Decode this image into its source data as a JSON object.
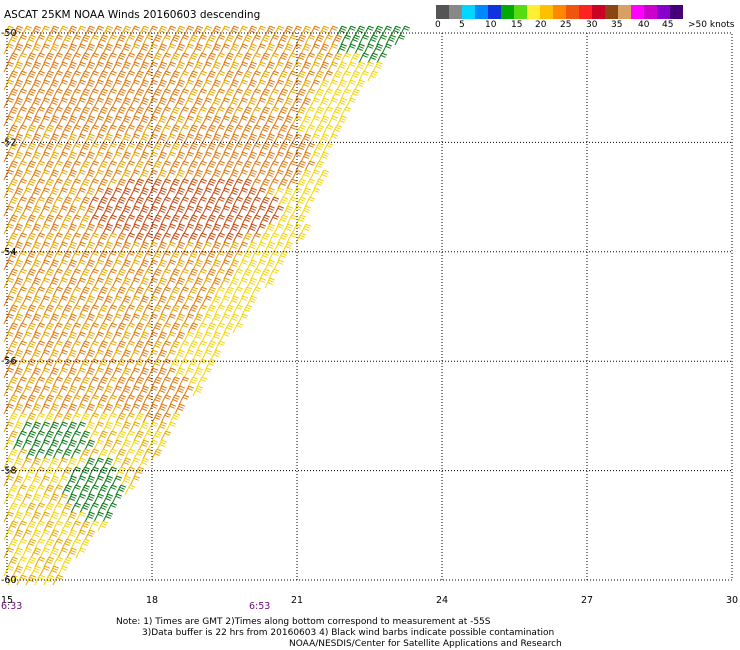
{
  "title": "ASCAT 25KM NOAA Winds 20160603 descending",
  "legend": {
    "colors": [
      "#555555",
      "#888888",
      "#00d7ff",
      "#0088ff",
      "#1133dd",
      "#00aa00",
      "#55dd11",
      "#ffee33",
      "#ffc000",
      "#ff8800",
      "#ee5511",
      "#ff2222",
      "#cc0022",
      "#8b4513",
      "#d9a066",
      "#ff00ff",
      "#cc00cc",
      "#8800cc",
      "#440077"
    ],
    "ticks": [
      "0",
      "5",
      "10",
      "15",
      "20",
      "25",
      "30",
      "35",
      "40",
      "45",
      ">50 knots"
    ],
    "barb_colors": {
      "yellow": "#f5d60a",
      "gold": "#e8a800",
      "orange": "#e07a10",
      "rust": "#c84a12",
      "green": "#0e7a18"
    }
  },
  "map": {
    "lat_labels": [
      "-50",
      "-52",
      "-54",
      "-56",
      "-58",
      "-60"
    ],
    "lon_labels": [
      "15",
      "18",
      "21",
      "24",
      "27",
      "30"
    ],
    "time_labels": [
      "6:33",
      "6:53"
    ]
  },
  "notes": {
    "line1": "Note: 1) Times are GMT 2)Times along bottom correspond to measurement at -55S",
    "line2": "3)Data buffer is 22 hrs from 20160603 4) Black wind barbs indicate possible contamination",
    "line3": "NOAA/NESDIS/Center for Satellite Applications and Research"
  }
}
